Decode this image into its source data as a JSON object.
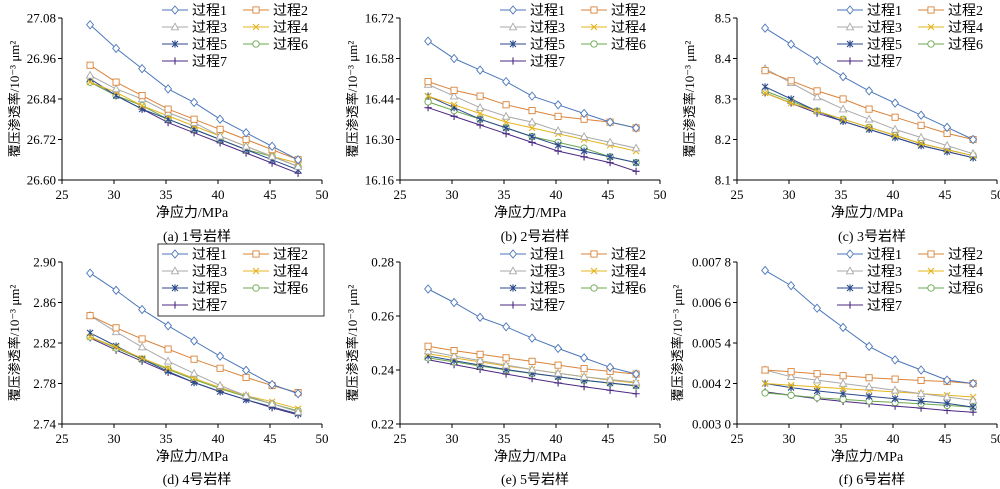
{
  "figure": {
    "x_axis_label": "净应力/MPa",
    "y_axis_label": "覆压渗透率/10⁻³ μm²",
    "legend_labels": [
      "过程1",
      "过程2",
      "过程3",
      "过程4",
      "过程5",
      "过程6",
      "过程7"
    ],
    "series_colors": [
      "#4a76b9",
      "#d9843b",
      "#a9a9a9",
      "#e5b41d",
      "#2b4a8c",
      "#6aa84f",
      "#4b2882"
    ],
    "series_markers": [
      "diamond",
      "square",
      "triangle",
      "x",
      "asterisk",
      "circle",
      "plus"
    ],
    "x_ticks": [
      "25",
      "30",
      "35",
      "40",
      "45",
      "50"
    ]
  },
  "chart_data": [
    {
      "type": "line",
      "caption": "(a) 1号岩样",
      "x": [
        27.7,
        30.2,
        32.7,
        35.2,
        37.7,
        40.2,
        42.7,
        45.2,
        47.7
      ],
      "ylim": [
        26.6,
        27.08
      ],
      "y_ticks": [
        "26.60",
        "26.72",
        "26.84",
        "26.96",
        "27.08"
      ],
      "series": [
        {
          "name": "过程1",
          "values": [
            27.06,
            26.99,
            26.93,
            26.87,
            26.83,
            26.78,
            26.74,
            26.7,
            26.66
          ]
        },
        {
          "name": "过程2",
          "values": [
            26.94,
            26.89,
            26.85,
            26.81,
            26.78,
            26.75,
            26.72,
            26.69,
            26.66
          ]
        },
        {
          "name": "过程3",
          "values": [
            26.91,
            26.87,
            26.84,
            26.8,
            26.77,
            26.73,
            26.7,
            26.67,
            26.64
          ]
        },
        {
          "name": "过程4",
          "values": [
            26.89,
            26.86,
            26.82,
            26.79,
            26.76,
            26.73,
            26.7,
            26.67,
            26.65
          ]
        },
        {
          "name": "过程5",
          "values": [
            26.9,
            26.85,
            26.81,
            26.78,
            26.75,
            26.72,
            26.69,
            26.66,
            26.63
          ]
        },
        {
          "name": "过程6",
          "values": [
            26.89,
            26.85,
            26.82,
            26.78,
            26.75,
            26.72,
            26.69,
            26.67,
            26.64
          ]
        },
        {
          "name": "过程7",
          "values": [
            26.89,
            26.85,
            26.81,
            26.77,
            26.74,
            26.71,
            26.68,
            26.65,
            26.62
          ]
        }
      ]
    },
    {
      "type": "line",
      "caption": "(b) 2号岩样",
      "x": [
        27.7,
        30.2,
        32.7,
        35.2,
        37.7,
        40.2,
        42.7,
        45.2,
        47.7
      ],
      "ylim": [
        16.16,
        16.72
      ],
      "y_ticks": [
        "16.16",
        "16.30",
        "16.44",
        "16.58",
        "16.72"
      ],
      "series": [
        {
          "name": "过程1",
          "values": [
            16.64,
            16.58,
            16.54,
            16.5,
            16.45,
            16.42,
            16.39,
            16.36,
            16.34
          ]
        },
        {
          "name": "过程2",
          "values": [
            16.5,
            16.47,
            16.45,
            16.42,
            16.4,
            16.38,
            16.37,
            16.36,
            16.34
          ]
        },
        {
          "name": "过程3",
          "values": [
            16.49,
            16.45,
            16.41,
            16.38,
            16.36,
            16.33,
            16.31,
            16.29,
            16.27
          ]
        },
        {
          "name": "过程4",
          "values": [
            16.45,
            16.42,
            16.39,
            16.36,
            16.34,
            16.32,
            16.3,
            16.28,
            16.26
          ]
        },
        {
          "name": "过程5",
          "values": [
            16.45,
            16.41,
            16.37,
            16.34,
            16.31,
            16.28,
            16.26,
            16.24,
            16.22
          ]
        },
        {
          "name": "过程6",
          "values": [
            16.43,
            16.4,
            16.37,
            16.34,
            16.31,
            16.29,
            16.27,
            16.24,
            16.22
          ]
        },
        {
          "name": "过程7",
          "values": [
            16.41,
            16.38,
            16.35,
            16.32,
            16.29,
            16.26,
            16.24,
            16.22,
            16.19
          ]
        }
      ]
    },
    {
      "type": "line",
      "caption": "(c) 3号岩样",
      "x": [
        27.7,
        30.2,
        32.7,
        35.2,
        37.7,
        40.2,
        42.7,
        45.2,
        47.7
      ],
      "ylim": [
        8.1,
        8.5
      ],
      "y_ticks": [
        "8.1",
        "8.2",
        "8.3",
        "8.4",
        "8.5"
      ],
      "series": [
        {
          "name": "过程1",
          "values": [
            8.475,
            8.435,
            8.395,
            8.355,
            8.32,
            8.29,
            8.26,
            8.23,
            8.2
          ]
        },
        {
          "name": "过程2",
          "values": [
            8.37,
            8.345,
            8.32,
            8.3,
            8.275,
            8.255,
            8.235,
            8.215,
            8.2
          ]
        },
        {
          "name": "过程3",
          "values": [
            8.375,
            8.34,
            8.305,
            8.275,
            8.25,
            8.225,
            8.205,
            8.185,
            8.165
          ]
        },
        {
          "name": "过程4",
          "values": [
            8.315,
            8.29,
            8.27,
            8.25,
            8.23,
            8.21,
            8.19,
            8.175,
            8.16
          ]
        },
        {
          "name": "过程5",
          "values": [
            8.33,
            8.3,
            8.27,
            8.245,
            8.225,
            8.205,
            8.185,
            8.17,
            8.155
          ]
        },
        {
          "name": "过程6",
          "values": [
            8.32,
            8.295,
            8.27,
            8.25,
            8.23,
            8.21,
            8.19,
            8.175,
            8.16
          ]
        },
        {
          "name": "过程7",
          "values": [
            8.315,
            8.29,
            8.265,
            8.245,
            8.225,
            8.205,
            8.185,
            8.17,
            8.155
          ]
        }
      ]
    },
    {
      "type": "line",
      "caption": "(d) 4号岩样",
      "x": [
        27.7,
        30.2,
        32.7,
        35.2,
        37.7,
        40.2,
        42.7,
        45.2,
        47.7
      ],
      "ylim": [
        2.74,
        2.9
      ],
      "y_ticks": [
        "2.74",
        "2.78",
        "2.82",
        "2.86",
        "2.90"
      ],
      "series": [
        {
          "name": "过程1",
          "values": [
            2.889,
            2.872,
            2.853,
            2.837,
            2.822,
            2.807,
            2.793,
            2.779,
            2.77
          ]
        },
        {
          "name": "过程2",
          "values": [
            2.847,
            2.835,
            2.824,
            2.814,
            2.804,
            2.795,
            2.786,
            2.778,
            2.771
          ]
        },
        {
          "name": "过程3",
          "values": [
            2.847,
            2.831,
            2.816,
            2.802,
            2.79,
            2.778,
            2.768,
            2.76,
            2.752
          ]
        },
        {
          "name": "过程4",
          "values": [
            2.826,
            2.816,
            2.805,
            2.795,
            2.785,
            2.776,
            2.768,
            2.762,
            2.755
          ]
        },
        {
          "name": "过程5",
          "values": [
            2.83,
            2.817,
            2.804,
            2.792,
            2.781,
            2.772,
            2.764,
            2.757,
            2.75
          ]
        },
        {
          "name": "过程6",
          "values": [
            2.826,
            2.815,
            2.804,
            2.794,
            2.784,
            2.775,
            2.767,
            2.76,
            2.753
          ]
        },
        {
          "name": "过程7",
          "values": [
            2.825,
            2.813,
            2.802,
            2.791,
            2.781,
            2.772,
            2.764,
            2.756,
            2.749
          ]
        }
      ]
    },
    {
      "type": "line",
      "caption": "(e) 5号岩样",
      "x": [
        27.7,
        30.2,
        32.7,
        35.2,
        37.7,
        40.2,
        42.7,
        45.2,
        47.7
      ],
      "ylim": [
        0.22,
        0.28
      ],
      "y_ticks": [
        "0.22",
        "0.24",
        "0.26",
        "0.28"
      ],
      "series": [
        {
          "name": "过程1",
          "values": [
            0.27,
            0.265,
            0.2595,
            0.256,
            0.2518,
            0.248,
            0.2445,
            0.241,
            0.2385
          ]
        },
        {
          "name": "过程2",
          "values": [
            0.2488,
            0.2472,
            0.2458,
            0.2445,
            0.2432,
            0.2418,
            0.2405,
            0.2395,
            0.2385
          ]
        },
        {
          "name": "过程3",
          "values": [
            0.247,
            0.2452,
            0.2435,
            0.2418,
            0.2402,
            0.2388,
            0.2375,
            0.2365,
            0.2355
          ]
        },
        {
          "name": "过程4",
          "values": [
            0.246,
            0.2445,
            0.243,
            0.2415,
            0.2402,
            0.2388,
            0.2375,
            0.2362,
            0.2352
          ]
        },
        {
          "name": "过程5",
          "values": [
            0.2452,
            0.2435,
            0.2418,
            0.2402,
            0.2388,
            0.2375,
            0.2362,
            0.2352,
            0.2342
          ]
        },
        {
          "name": "过程6",
          "values": [
            0.2445,
            0.243,
            0.2415,
            0.24,
            0.2387,
            0.2375,
            0.2362,
            0.2351,
            0.2341
          ]
        },
        {
          "name": "过程7",
          "values": [
            0.2438,
            0.242,
            0.2402,
            0.2385,
            0.2368,
            0.2352,
            0.2338,
            0.2325,
            0.2312
          ]
        }
      ]
    },
    {
      "type": "line",
      "caption": "(f) 6号岩样",
      "x": [
        27.7,
        30.2,
        32.7,
        35.2,
        37.7,
        40.2,
        42.7,
        45.2,
        47.7
      ],
      "ylim": [
        0.003,
        0.0078
      ],
      "y_ticks": [
        "0.003 0",
        "0.004 2",
        "0.005 4",
        "0.006 6",
        "0.007 8"
      ],
      "series": [
        {
          "name": "过程1",
          "values": [
            0.00755,
            0.0071,
            0.00643,
            0.00586,
            0.0053,
            0.0049,
            0.0046,
            0.0043,
            0.0042
          ]
        },
        {
          "name": "过程2",
          "values": [
            0.0046,
            0.00455,
            0.00449,
            0.00443,
            0.00437,
            0.00433,
            0.00429,
            0.00426,
            0.0042
          ]
        },
        {
          "name": "过程3",
          "values": [
            0.0046,
            0.0044,
            0.0043,
            0.0042,
            0.0041,
            0.004,
            0.0039,
            0.0038,
            0.0037
          ]
        },
        {
          "name": "过程4",
          "values": [
            0.0042,
            0.00415,
            0.0041,
            0.00405,
            0.004,
            0.00395,
            0.0039,
            0.00385,
            0.0038
          ]
        },
        {
          "name": "过程5",
          "values": [
            0.0042,
            0.00408,
            0.00398,
            0.0039,
            0.00382,
            0.00375,
            0.00368,
            0.00361,
            0.0035
          ]
        },
        {
          "name": "过程6",
          "values": [
            0.00392,
            0.00385,
            0.00378,
            0.00373,
            0.00368,
            0.00364,
            0.0036,
            0.00355,
            0.0035
          ]
        },
        {
          "name": "过程7",
          "values": [
            0.00395,
            0.00385,
            0.00375,
            0.00367,
            0.0036,
            0.00353,
            0.00347,
            0.0034,
            0.00335
          ]
        }
      ]
    }
  ]
}
